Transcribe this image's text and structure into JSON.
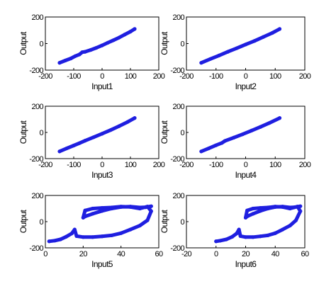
{
  "colors": {
    "series": "#1f1fe0",
    "axes": "#000000",
    "background": "#ffffff"
  },
  "chart_data": [
    {
      "type": "scatter",
      "xlabel": "Input1",
      "ylabel": "Output",
      "xlim": [
        -200,
        200
      ],
      "ylim": [
        -200,
        200
      ],
      "xticks": [
        -200,
        -100,
        0,
        100,
        200
      ],
      "yticks": [
        -200,
        0,
        200
      ],
      "grid": false,
      "series": [
        {
          "x": [
            -150,
            -130,
            -110,
            -95,
            -80,
            -70,
            -60,
            -40,
            -20,
            0,
            20,
            40,
            60,
            80,
            100,
            115
          ],
          "y": [
            -145,
            -128,
            -112,
            -95,
            -82,
            -65,
            -62,
            -48,
            -32,
            -14,
            6,
            25,
            45,
            68,
            90,
            110
          ]
        }
      ]
    },
    {
      "type": "scatter",
      "xlabel": "Input2",
      "ylabel": "Output",
      "xlim": [
        -200,
        200
      ],
      "ylim": [
        -200,
        200
      ],
      "xticks": [
        -200,
        -100,
        0,
        100,
        200
      ],
      "yticks": [
        -200,
        0,
        200
      ],
      "grid": false,
      "series": [
        {
          "x": [
            -150,
            -120,
            -90,
            -60,
            -30,
            0,
            30,
            60,
            90,
            115
          ],
          "y": [
            -145,
            -117,
            -90,
            -62,
            -35,
            -7,
            20,
            50,
            80,
            110
          ]
        }
      ]
    },
    {
      "type": "scatter",
      "xlabel": "Input3",
      "ylabel": "Output",
      "xlim": [
        -200,
        200
      ],
      "ylim": [
        -200,
        200
      ],
      "xticks": [
        -200,
        -100,
        0,
        100,
        200
      ],
      "yticks": [
        -200,
        0,
        200
      ],
      "grid": false,
      "series": [
        {
          "x": [
            -150,
            -125,
            -100,
            -80,
            -60,
            -30,
            0,
            30,
            60,
            90,
            115
          ],
          "y": [
            -145,
            -122,
            -100,
            -82,
            -63,
            -37,
            -10,
            18,
            48,
            80,
            110
          ]
        }
      ]
    },
    {
      "type": "scatter",
      "xlabel": "Input4",
      "ylabel": "Output",
      "xlim": [
        -200,
        200
      ],
      "ylim": [
        -200,
        200
      ],
      "xticks": [
        -200,
        -100,
        0,
        100,
        200
      ],
      "yticks": [
        -200,
        0,
        200
      ],
      "grid": false,
      "series": [
        {
          "x": [
            -150,
            -125,
            -100,
            -80,
            -70,
            -40,
            -10,
            20,
            50,
            80,
            115
          ],
          "y": [
            -145,
            -122,
            -98,
            -80,
            -65,
            -40,
            -14,
            14,
            42,
            72,
            110
          ]
        }
      ]
    },
    {
      "type": "scatter",
      "xlabel": "Input5",
      "ylabel": "Output",
      "xlim": [
        0,
        60
      ],
      "ylim": [
        -200,
        200
      ],
      "xticks": [
        0,
        20,
        40,
        60
      ],
      "yticks": [
        -200,
        0,
        200
      ],
      "grid": false,
      "series": [
        {
          "x": [
            2,
            5,
            8,
            11,
            14,
            15.5,
            16.5,
            20,
            25,
            30,
            35,
            40,
            45,
            50,
            54,
            56,
            54,
            50,
            45,
            40,
            35,
            30,
            25,
            21,
            20,
            21,
            25,
            30,
            35,
            40,
            45,
            50,
            53,
            56,
            55
          ],
          "y": [
            -150,
            -145,
            -135,
            -115,
            -90,
            -60,
            -110,
            -118,
            -118,
            -112,
            -105,
            -88,
            -60,
            -30,
            10,
            80,
            115,
            100,
            112,
            115,
            108,
            105,
            100,
            85,
            30,
            40,
            60,
            82,
            100,
            112,
            115,
            108,
            110,
            118,
            112
          ]
        }
      ]
    },
    {
      "type": "scatter",
      "xlabel": "Input6",
      "ylabel": "Output",
      "xlim": [
        -20,
        60
      ],
      "ylim": [
        -200,
        200
      ],
      "xticks": [
        -20,
        0,
        20,
        40,
        60
      ],
      "yticks": [
        -200,
        0,
        200
      ],
      "grid": false,
      "series": [
        {
          "x": [
            0,
            3,
            7,
            11,
            14,
            15.5,
            16.5,
            20,
            25,
            30,
            35,
            40,
            45,
            50,
            54,
            57,
            55,
            50,
            45,
            40,
            35,
            30,
            25,
            21,
            20,
            21,
            25,
            30,
            35,
            40,
            45,
            50,
            53,
            57,
            56
          ],
          "y": [
            -150,
            -145,
            -135,
            -115,
            -90,
            -60,
            -110,
            -118,
            -118,
            -112,
            -105,
            -88,
            -60,
            -30,
            10,
            80,
            115,
            100,
            112,
            115,
            108,
            105,
            100,
            85,
            30,
            40,
            60,
            82,
            100,
            112,
            115,
            108,
            110,
            118,
            112
          ]
        }
      ]
    }
  ]
}
